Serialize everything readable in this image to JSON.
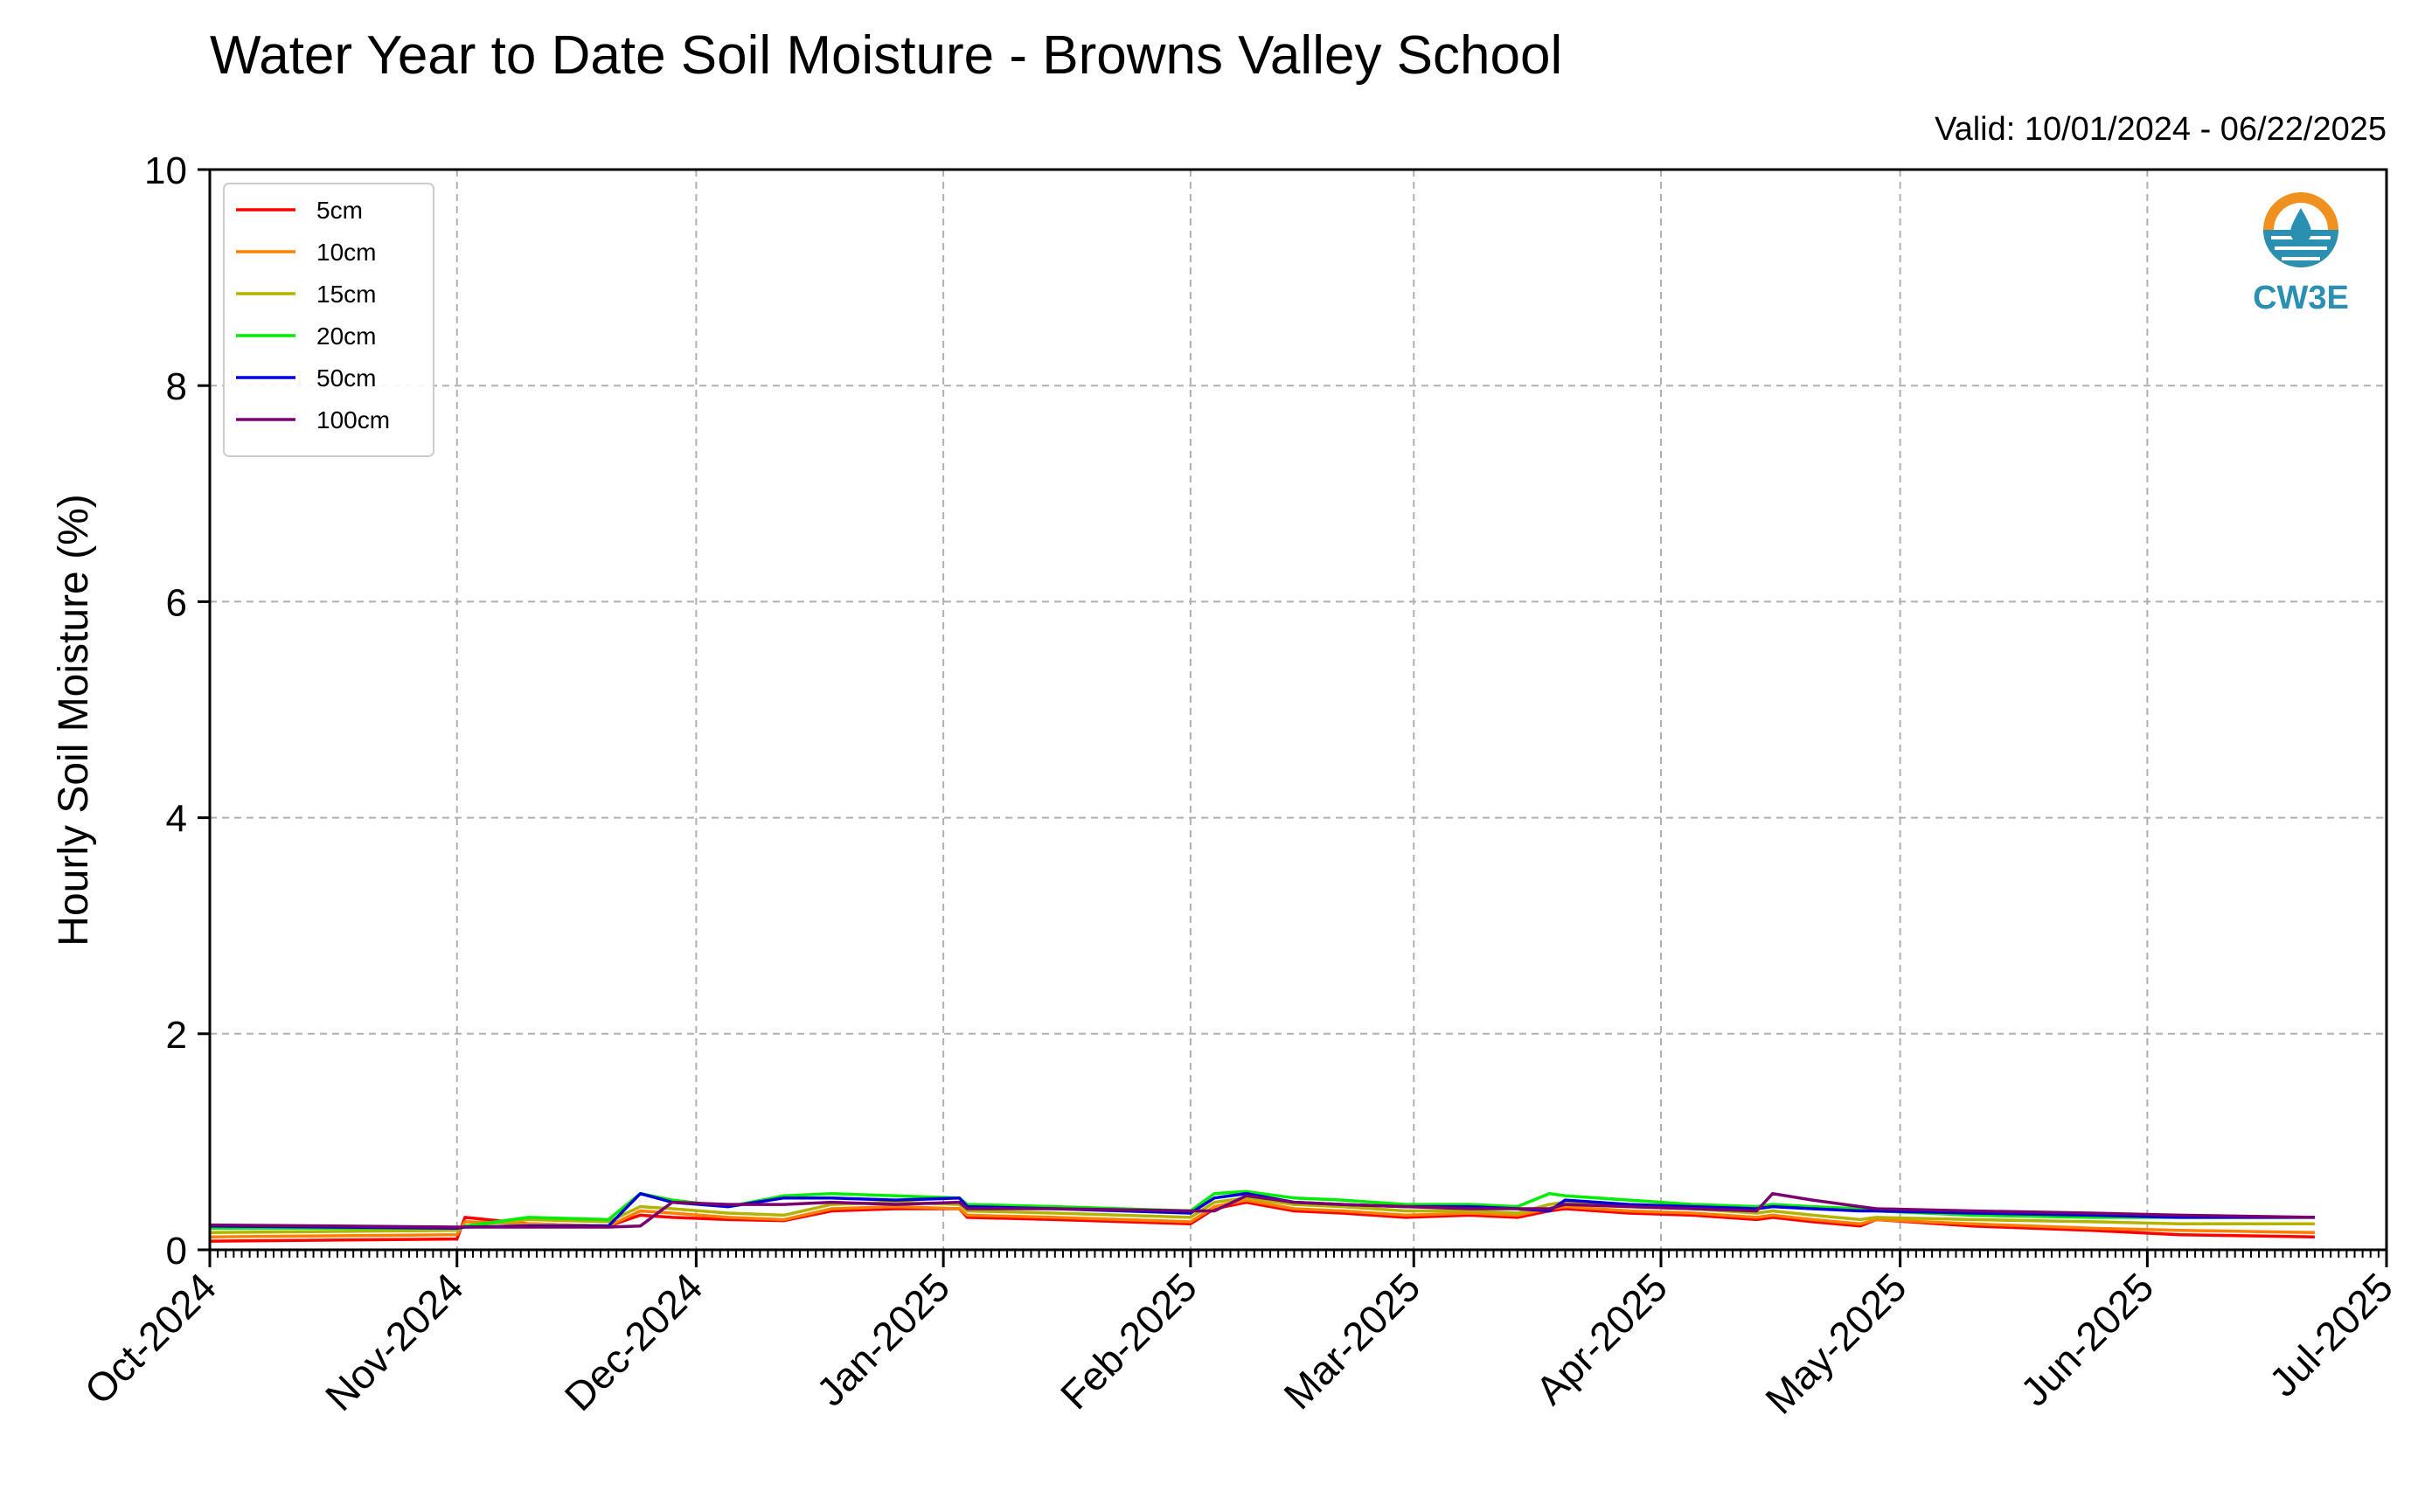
{
  "chart_data": {
    "type": "line",
    "title": "Water Year to Date Soil Moisture - Browns Valley School",
    "subtitle": "Valid: 10/01/2024 - 06/22/2025",
    "xlabel": "",
    "ylabel": "Hourly Soil Moisture (%)",
    "ylim": [
      0,
      10
    ],
    "yticks": [
      0,
      2,
      4,
      6,
      8,
      10
    ],
    "xlim": [
      "2024-10-01",
      "2025-07-01"
    ],
    "xticks": [
      {
        "date": "2024-10-01",
        "label": "Oct-2024"
      },
      {
        "date": "2024-11-01",
        "label": "Nov-2024"
      },
      {
        "date": "2024-12-01",
        "label": "Dec-2024"
      },
      {
        "date": "2025-01-01",
        "label": "Jan-2025"
      },
      {
        "date": "2025-02-01",
        "label": "Feb-2025"
      },
      {
        "date": "2025-03-01",
        "label": "Mar-2025"
      },
      {
        "date": "2025-04-01",
        "label": "Apr-2025"
      },
      {
        "date": "2025-05-01",
        "label": "May-2025"
      },
      {
        "date": "2025-06-01",
        "label": "Jun-2025"
      },
      {
        "date": "2025-07-01",
        "label": "Jul-2025"
      }
    ],
    "grid": true,
    "legend_position": "top-left",
    "logo_text": "CW3E",
    "x": [
      "2024-10-01",
      "2024-11-01",
      "2024-11-02",
      "2024-11-10",
      "2024-11-20",
      "2024-11-24",
      "2024-11-28",
      "2024-12-05",
      "2024-12-12",
      "2024-12-18",
      "2024-12-26",
      "2025-01-03",
      "2025-01-04",
      "2025-01-15",
      "2025-02-01",
      "2025-02-04",
      "2025-02-08",
      "2025-02-14",
      "2025-02-20",
      "2025-02-28",
      "2025-03-08",
      "2025-03-14",
      "2025-03-18",
      "2025-03-20",
      "2025-03-28",
      "2025-04-05",
      "2025-04-13",
      "2025-04-15",
      "2025-04-20",
      "2025-04-26",
      "2025-04-28",
      "2025-05-10",
      "2025-05-25",
      "2025-06-05",
      "2025-06-22"
    ],
    "series": [
      {
        "name": "5cm",
        "color": "#ff0000",
        "values": [
          0.08,
          0.1,
          0.3,
          0.24,
          0.22,
          0.32,
          0.3,
          0.28,
          0.27,
          0.36,
          0.38,
          0.38,
          0.3,
          0.28,
          0.24,
          0.38,
          0.44,
          0.36,
          0.34,
          0.3,
          0.32,
          0.3,
          0.36,
          0.38,
          0.34,
          0.32,
          0.28,
          0.3,
          0.26,
          0.22,
          0.28,
          0.22,
          0.18,
          0.14,
          0.12
        ]
      },
      {
        "name": "10cm",
        "color": "#ff8000",
        "values": [
          0.12,
          0.14,
          0.26,
          0.24,
          0.22,
          0.36,
          0.34,
          0.3,
          0.28,
          0.38,
          0.4,
          0.38,
          0.32,
          0.3,
          0.26,
          0.4,
          0.46,
          0.38,
          0.36,
          0.32,
          0.34,
          0.32,
          0.38,
          0.4,
          0.36,
          0.34,
          0.3,
          0.32,
          0.28,
          0.24,
          0.28,
          0.24,
          0.2,
          0.18,
          0.16
        ]
      },
      {
        "name": "15cm",
        "color": "#b3b300",
        "values": [
          0.16,
          0.18,
          0.22,
          0.28,
          0.26,
          0.4,
          0.38,
          0.34,
          0.32,
          0.42,
          0.44,
          0.42,
          0.36,
          0.34,
          0.3,
          0.44,
          0.48,
          0.42,
          0.4,
          0.36,
          0.36,
          0.34,
          0.42,
          0.44,
          0.4,
          0.38,
          0.34,
          0.36,
          0.32,
          0.28,
          0.3,
          0.28,
          0.26,
          0.24,
          0.24
        ]
      },
      {
        "name": "20cm",
        "color": "#00ee00",
        "values": [
          0.2,
          0.2,
          0.22,
          0.3,
          0.28,
          0.52,
          0.46,
          0.4,
          0.5,
          0.52,
          0.5,
          0.48,
          0.42,
          0.4,
          0.36,
          0.52,
          0.54,
          0.48,
          0.46,
          0.42,
          0.42,
          0.4,
          0.52,
          0.5,
          0.46,
          0.42,
          0.4,
          0.42,
          0.4,
          0.38,
          0.36,
          0.32,
          0.3,
          0.3,
          0.3
        ]
      },
      {
        "name": "50cm",
        "color": "#0000dd",
        "values": [
          0.22,
          0.2,
          0.21,
          0.22,
          0.22,
          0.52,
          0.44,
          0.4,
          0.48,
          0.48,
          0.46,
          0.48,
          0.4,
          0.38,
          0.34,
          0.48,
          0.52,
          0.44,
          0.42,
          0.4,
          0.4,
          0.38,
          0.36,
          0.46,
          0.42,
          0.4,
          0.38,
          0.4,
          0.38,
          0.36,
          0.36,
          0.34,
          0.32,
          0.3,
          0.3
        ]
      },
      {
        "name": "100cm",
        "color": "#7a0070",
        "values": [
          0.23,
          0.21,
          0.21,
          0.21,
          0.21,
          0.22,
          0.44,
          0.42,
          0.42,
          0.44,
          0.42,
          0.44,
          0.38,
          0.38,
          0.36,
          0.36,
          0.5,
          0.44,
          0.42,
          0.4,
          0.38,
          0.38,
          0.38,
          0.42,
          0.4,
          0.38,
          0.36,
          0.52,
          0.46,
          0.4,
          0.38,
          0.36,
          0.34,
          0.32,
          0.3
        ]
      }
    ]
  }
}
